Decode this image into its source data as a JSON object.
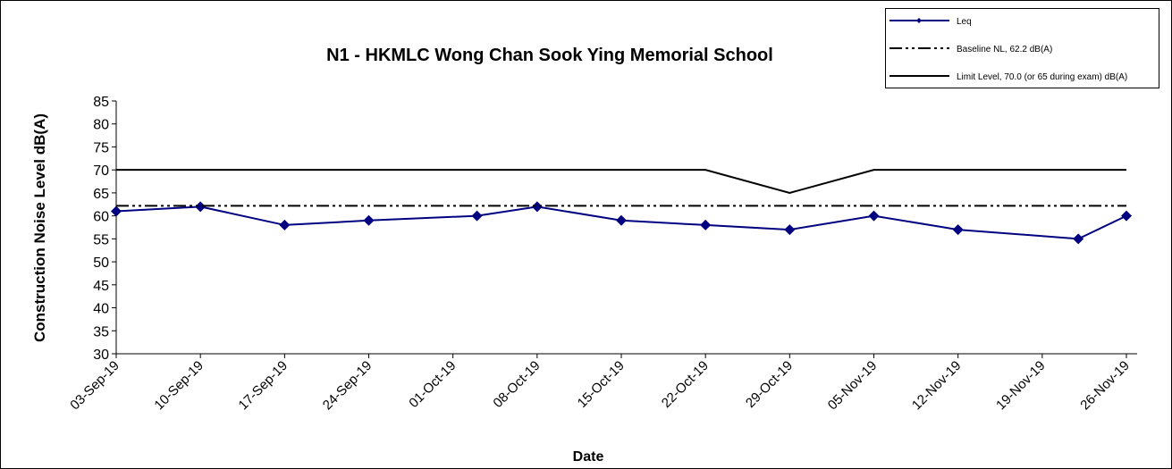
{
  "chart_data": {
    "type": "line",
    "title": "N1 - HKMLC Wong Chan Sook Ying Memorial School",
    "x_label": "Date",
    "y_label": "Construction Noise Level  dB(A)",
    "xlim": [
      "2019-09-03",
      "2019-11-26"
    ],
    "xticks": [
      {
        "value": "2019-09-03",
        "label": "03-Sep-19"
      },
      {
        "value": "2019-09-10",
        "label": "10-Sep-19"
      },
      {
        "value": "2019-09-17",
        "label": "17-Sep-19"
      },
      {
        "value": "2019-09-24",
        "label": "24-Sep-19"
      },
      {
        "value": "2019-10-01",
        "label": "01-Oct-19"
      },
      {
        "value": "2019-10-08",
        "label": "08-Oct-19"
      },
      {
        "value": "2019-10-15",
        "label": "15-Oct-19"
      },
      {
        "value": "2019-10-22",
        "label": "22-Oct-19"
      },
      {
        "value": "2019-10-29",
        "label": "29-Oct-19"
      },
      {
        "value": "2019-11-05",
        "label": "05-Nov-19"
      },
      {
        "value": "2019-11-12",
        "label": "12-Nov-19"
      },
      {
        "value": "2019-11-19",
        "label": "19-Nov-19"
      },
      {
        "value": "2019-11-26",
        "label": "26-Nov-19"
      }
    ],
    "ylim": [
      30,
      85
    ],
    "yticks": [
      30,
      35,
      40,
      45,
      50,
      55,
      60,
      65,
      70,
      75,
      80,
      85
    ],
    "grid": false,
    "legend": "top-right",
    "series": [
      {
        "name": "Leq",
        "color": "#000080",
        "style": "solid-marker",
        "x": [
          "2019-09-03",
          "2019-09-10",
          "2019-09-17",
          "2019-09-24",
          "2019-10-03",
          "2019-10-08",
          "2019-10-15",
          "2019-10-22",
          "2019-10-29",
          "2019-11-05",
          "2019-11-12",
          "2019-11-22",
          "2019-11-26"
        ],
        "values": [
          61,
          62,
          58,
          59,
          60,
          62,
          59,
          58,
          57,
          60,
          57,
          55,
          60
        ]
      },
      {
        "name": "Baseline NL, 62.2 dB(A)",
        "color": "#000000",
        "style": "dash-dot-dot",
        "x": [
          "2019-09-03",
          "2019-11-26"
        ],
        "values": [
          62.2,
          62.2
        ]
      },
      {
        "name": "Limit Level, 70.0 (or 65 during exam) dB(A)",
        "color": "#000000",
        "style": "solid",
        "x": [
          "2019-09-03",
          "2019-10-22",
          "2019-10-29",
          "2019-11-05",
          "2019-11-26"
        ],
        "values": [
          70,
          70,
          65,
          70,
          70
        ]
      }
    ]
  }
}
